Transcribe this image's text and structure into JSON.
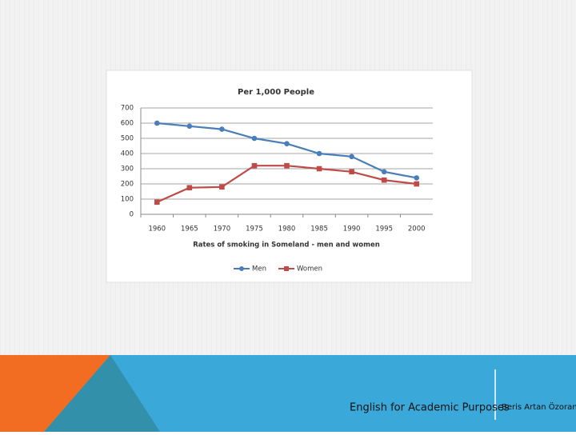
{
  "chart_data": {
    "type": "line",
    "title": "Per 1,000 People",
    "x_label": "Rates of smoking  in Someland - men and women",
    "categories": [
      "1960",
      "1965",
      "1970",
      "1975",
      "1980",
      "1985",
      "1990",
      "1995",
      "2000"
    ],
    "series": [
      {
        "name": "Men",
        "color": "#4a7ebb",
        "values": [
          600,
          580,
          560,
          500,
          465,
          400,
          380,
          280,
          240
        ]
      },
      {
        "name": "Women",
        "color": "#be4b48",
        "values": [
          80,
          175,
          180,
          320,
          320,
          300,
          280,
          225,
          200
        ]
      }
    ],
    "ylim": [
      0,
      700
    ],
    "yticks": [
      0,
      100,
      200,
      300,
      400,
      500,
      600,
      700
    ],
    "grid": true,
    "legend": "bottom"
  },
  "footer": {
    "course": "English for Academic Purposes",
    "author": "Beris Artan Özoran"
  }
}
